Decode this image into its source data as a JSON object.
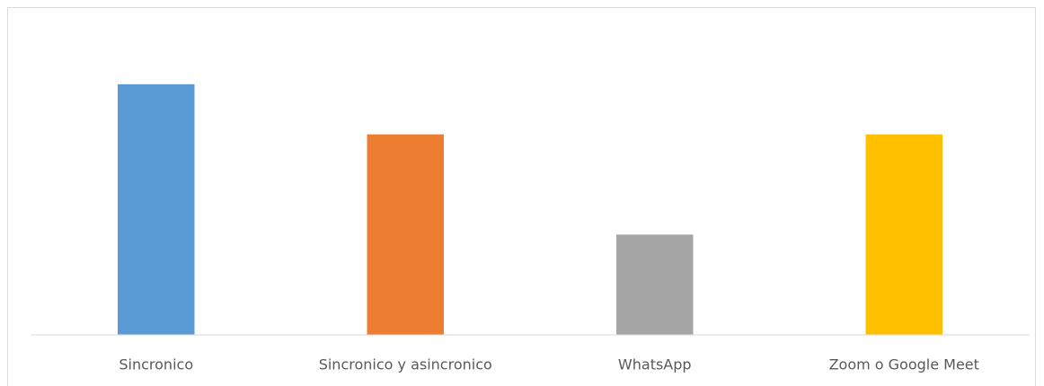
{
  "chart_data": {
    "type": "bar",
    "categories": [
      "Sincronico",
      "Sincronico y asincronico",
      "WhatsApp",
      "Zoom o Google Meet"
    ],
    "values": [
      5,
      4,
      2,
      4
    ],
    "colors": [
      "#5b9bd5",
      "#ed7d31",
      "#a5a5a5",
      "#ffc000"
    ],
    "ylim": [
      0,
      6
    ]
  }
}
